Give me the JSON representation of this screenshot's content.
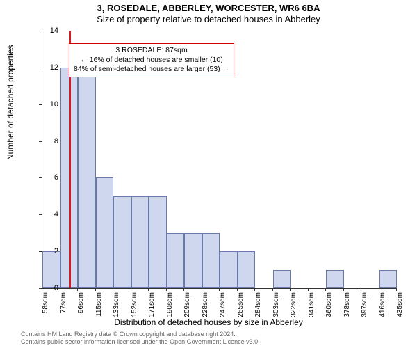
{
  "title1": "3, ROSEDALE, ABBERLEY, WORCESTER, WR6 6BA",
  "title2": "Size of property relative to detached houses in Abberley",
  "ylabel": "Number of detached properties",
  "xlabel": "Distribution of detached houses by size in Abberley",
  "chart": {
    "type": "histogram",
    "ylim": [
      0,
      14
    ],
    "ytick_step": 2,
    "yticks": [
      0,
      2,
      4,
      6,
      8,
      10,
      12,
      14
    ],
    "x_start": 58,
    "x_step": 19,
    "xtick_labels": [
      "58sqm",
      "77sqm",
      "96sqm",
      "115sqm",
      "133sqm",
      "152sqm",
      "171sqm",
      "190sqm",
      "209sqm",
      "228sqm",
      "247sqm",
      "265sqm",
      "284sqm",
      "303sqm",
      "322sqm",
      "341sqm",
      "360sqm",
      "378sqm",
      "397sqm",
      "416sqm",
      "435sqm"
    ],
    "bar_values": [
      2,
      12,
      13,
      6,
      5,
      5,
      5,
      3,
      3,
      3,
      2,
      2,
      0,
      1,
      0,
      0,
      1,
      0,
      0,
      1
    ],
    "bar_fill": "#ced7ed",
    "bar_stroke": "#6a7aa8",
    "background": "#ffffff",
    "marker_color": "#d71920",
    "marker_position_sqm": 87
  },
  "info_box": {
    "line1": "3 ROSEDALE: 87sqm",
    "line2": "← 16% of detached houses are smaller (10)",
    "line3": "84% of semi-detached houses are larger (53) →"
  },
  "copyright": {
    "line1": "Contains HM Land Registry data © Crown copyright and database right 2024.",
    "line2": "Contains public sector information licensed under the Open Government Licence v3.0."
  }
}
